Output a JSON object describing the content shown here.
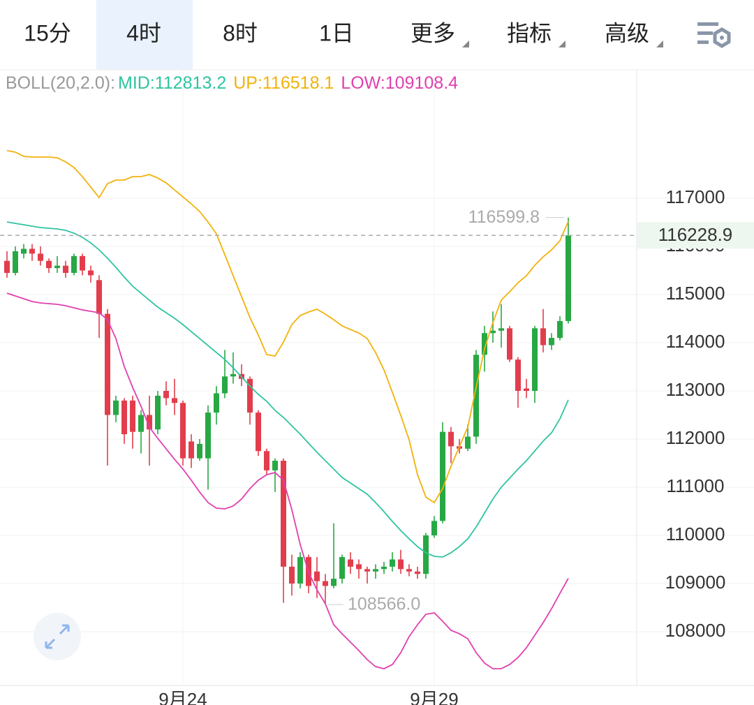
{
  "tabs": {
    "items": [
      "15分",
      "4时",
      "8时",
      "1日",
      "更多",
      "指标",
      "高级"
    ],
    "selected": 1,
    "dropdown": [
      4,
      5,
      6
    ]
  },
  "chart_data": {
    "type": "candlestick",
    "indicator": "BOLL(20,2.0):",
    "categories": [
      null,
      null,
      null,
      null,
      null,
      null,
      null,
      null,
      null,
      null,
      null,
      null,
      null,
      null,
      null,
      null,
      null,
      null,
      null,
      null,
      null,
      "9月24",
      null,
      null,
      null,
      null,
      null,
      null,
      null,
      null,
      null,
      null,
      null,
      null,
      null,
      null,
      null,
      null,
      null,
      null,
      null,
      null,
      null,
      null,
      null,
      null,
      null,
      null,
      null,
      null,
      null,
      "9月29",
      null,
      null,
      null,
      null,
      null,
      null,
      null,
      null,
      null,
      null,
      null,
      null,
      null,
      null,
      null,
      null
    ],
    "open": [
      115700,
      115450,
      115850,
      115950,
      115850,
      115700,
      115550,
      115600,
      115450,
      115800,
      115500,
      115300,
      114600,
      112500,
      112800,
      112800,
      112150,
      112500,
      112200,
      113000,
      112850,
      112750,
      111950,
      111600,
      111600,
      112550,
      112950,
      113300,
      113350,
      113250,
      112550,
      111750,
      111350,
      111550,
      109350,
      109000,
      109550,
      109250,
      109050,
      108950,
      109100,
      109500,
      109400,
      109300,
      109250,
      109300,
      109350,
      109500,
      109300,
      109250,
      109200,
      110000,
      110300,
      112150,
      111850,
      111800,
      112050,
      113750,
      114200,
      114250,
      114300,
      113650,
      113050,
      113000,
      114300,
      113950,
      114100,
      114450
    ],
    "high": [
      115900,
      116000,
      116050,
      116050,
      116000,
      115750,
      115800,
      115700,
      115850,
      115850,
      115600,
      115400,
      114700,
      112900,
      112850,
      112900,
      112600,
      112900,
      113000,
      113200,
      113250,
      112800,
      112100,
      112000,
      112700,
      113100,
      113850,
      113800,
      113550,
      113300,
      112600,
      111800,
      111600,
      111600,
      109600,
      109650,
      109600,
      109550,
      109200,
      110250,
      109600,
      109650,
      109500,
      109350,
      109400,
      109450,
      109650,
      109700,
      109400,
      109350,
      110050,
      110400,
      112350,
      112250,
      112000,
      112300,
      113850,
      114350,
      114650,
      114800,
      114350,
      113700,
      113250,
      114350,
      114700,
      114200,
      114550,
      116599.8
    ],
    "low": [
      115350,
      115400,
      115750,
      115700,
      115600,
      115450,
      115450,
      115350,
      115400,
      115400,
      115250,
      114100,
      111450,
      112350,
      111900,
      111800,
      111700,
      111450,
      112100,
      112700,
      112500,
      111450,
      111400,
      111550,
      110950,
      112300,
      112850,
      113150,
      113100,
      112300,
      111650,
      111250,
      110900,
      108600,
      108750,
      108900,
      108800,
      108700,
      108566,
      108900,
      109000,
      109200,
      109100,
      109000,
      109100,
      109200,
      109250,
      109200,
      109150,
      109100,
      109100,
      109950,
      110250,
      111500,
      111700,
      111750,
      111900,
      113400,
      114000,
      113900,
      113600,
      112650,
      112850,
      112750,
      113800,
      113850,
      114050,
      114400
    ],
    "close": [
      115450,
      115900,
      115950,
      115850,
      115700,
      115550,
      115600,
      115450,
      115800,
      115500,
      115400,
      114600,
      112500,
      112800,
      112100,
      112150,
      112500,
      112200,
      112900,
      112850,
      112750,
      111600,
      111600,
      111900,
      112550,
      112950,
      113300,
      113350,
      113250,
      112550,
      111750,
      111350,
      111550,
      109350,
      109000,
      109550,
      108950,
      109050,
      108950,
      109100,
      109550,
      109350,
      109300,
      109250,
      109300,
      109350,
      109500,
      109300,
      109250,
      109200,
      110000,
      110300,
      112150,
      111850,
      111800,
      112050,
      113750,
      114200,
      114250,
      114300,
      113650,
      113000,
      113000,
      114300,
      113950,
      114100,
      114450,
      116228.9
    ],
    "up_color": "#27a844",
    "down_color": "#e23d4c",
    "series": [
      {
        "legend": "MID:112813.2",
        "color": "#2fc4a0",
        "values": [
          116507,
          116478,
          116449,
          116420,
          116391,
          116377,
          116362,
          116333,
          116275,
          116188,
          116072,
          115928,
          115754,
          115565,
          115362,
          115174,
          115029,
          114884,
          114739,
          114623,
          114507,
          114377,
          114232,
          114087,
          113942,
          113797,
          113652,
          113478,
          113290,
          113101,
          112928,
          112783,
          112594,
          112449,
          112275,
          112101,
          111913,
          111725,
          111551,
          111377,
          111203,
          111087,
          110971,
          110855,
          110681,
          110493,
          110290,
          110101,
          109928,
          109768,
          109638,
          109565,
          109551,
          109638,
          109768,
          109928,
          110174,
          110464,
          110754,
          111000,
          111188,
          111377,
          111551,
          111754,
          111957,
          112130,
          112420,
          112813.2
        ]
      },
      {
        "legend": "UP:116518.1",
        "color": "#f2b20c",
        "values": [
          117990,
          117957,
          117870,
          117855,
          117855,
          117855,
          117841,
          117754,
          117638,
          117449,
          117232,
          117014,
          117304,
          117377,
          117377,
          117449,
          117449,
          117493,
          117420,
          117319,
          117174,
          117029,
          116884,
          116725,
          116507,
          116261,
          115826,
          115391,
          114957,
          114522,
          114159,
          113754,
          113725,
          114014,
          114377,
          114565,
          114638,
          114696,
          114594,
          114478,
          114348,
          114275,
          114203,
          114087,
          113797,
          113435,
          112971,
          112493,
          111986,
          111261,
          110797,
          110681,
          110971,
          111435,
          111841,
          112246,
          113073,
          113870,
          114420,
          114884,
          115058,
          115246,
          115391,
          115609,
          115783,
          115928,
          116116,
          116518.1
        ]
      },
      {
        "legend": "LOW:109108.4",
        "color": "#e040b0",
        "values": [
          115029,
          114971,
          114913,
          114855,
          114826,
          114812,
          114797,
          114768,
          114725,
          114681,
          114652,
          114623,
          114478,
          114087,
          113507,
          113073,
          112681,
          112246,
          112014,
          111797,
          111580,
          111377,
          111145,
          110899,
          110681,
          110565,
          110551,
          110609,
          110754,
          110971,
          111145,
          111261,
          111304,
          111145,
          110536,
          109812,
          109232,
          108870,
          108580,
          108145,
          107957,
          107783,
          107609,
          107420,
          107275,
          107232,
          107319,
          107565,
          107899,
          108145,
          108362,
          108391,
          108217,
          108029,
          107957,
          107855,
          107565,
          107348,
          107232,
          107232,
          107319,
          107464,
          107667,
          107928,
          108188,
          108478,
          108797,
          109108.4
        ]
      }
    ],
    "ylim": [
      106913,
      119667
    ],
    "yticks": [
      108000,
      109000,
      110000,
      111000,
      112000,
      113000,
      114000,
      115000,
      116000,
      117000
    ],
    "grid": true,
    "last_price": 116228.9,
    "high_label": 116599.8,
    "low_label": {
      "value": 108566,
      "label": "108566.0"
    }
  }
}
